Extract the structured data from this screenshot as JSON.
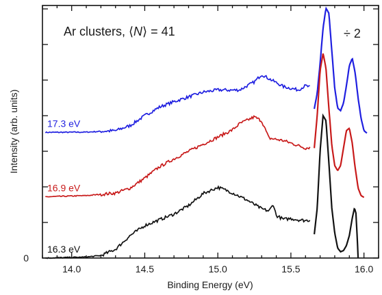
{
  "chart_data": {
    "type": "line",
    "title": "Ar clusters, ⟨N⟩ = 41",
    "title_prefix": "Ar clusters, ⟨",
    "title_var": "N",
    "title_suffix": "⟩ =  41",
    "xlabel": "Binding Energy (eV)",
    "ylabel": "Intensity (arb. units)",
    "xlim": [
      13.8,
      16.1
    ],
    "ylim": [
      0,
      1
    ],
    "x_ticks": [
      14.0,
      14.5,
      15.0,
      15.5,
      16.0
    ],
    "x_tick_labels": [
      "14.0",
      "14.5",
      "15.0",
      "15.5",
      "16.0"
    ],
    "y_tick_labels": [
      "0"
    ],
    "scale_note": "÷ 2",
    "grid": false,
    "series": [
      {
        "name": "17.3 eV",
        "color": "#1f1fe0",
        "x": [
          13.82,
          14.1,
          14.3,
          14.4,
          14.5,
          14.6,
          14.7,
          14.8,
          14.9,
          15.0,
          15.1,
          15.15,
          15.25,
          15.3,
          15.35,
          15.45,
          15.55,
          15.6,
          15.63
        ],
        "y": [
          0.503,
          0.504,
          0.51,
          0.53,
          0.57,
          0.604,
          0.626,
          0.645,
          0.664,
          0.673,
          0.672,
          0.673,
          0.705,
          0.735,
          0.718,
          0.686,
          0.673,
          0.69,
          0.684
        ],
        "peak_x": [
          15.66,
          15.68,
          15.7,
          15.72,
          15.74,
          15.76,
          15.78,
          15.8,
          15.82,
          15.84,
          15.86,
          15.88,
          15.9,
          15.92,
          15.94,
          15.96,
          15.98,
          16.0,
          16.02
        ],
        "peak_y": [
          0.597,
          0.66,
          0.78,
          0.92,
          1.0,
          0.98,
          0.83,
          0.68,
          0.6,
          0.59,
          0.62,
          0.69,
          0.77,
          0.8,
          0.74,
          0.64,
          0.56,
          0.51,
          0.5
        ]
      },
      {
        "name": "16.9 eV",
        "color": "#c81a1a",
        "x": [
          13.82,
          14.1,
          14.3,
          14.4,
          14.5,
          14.6,
          14.7,
          14.8,
          14.9,
          15.0,
          15.1,
          15.15,
          15.25,
          15.3,
          15.35,
          15.45,
          15.55,
          15.6,
          15.63
        ],
        "y": [
          0.245,
          0.25,
          0.26,
          0.28,
          0.32,
          0.365,
          0.397,
          0.427,
          0.456,
          0.484,
          0.513,
          0.538,
          0.565,
          0.549,
          0.48,
          0.47,
          0.45,
          0.44,
          0.443
        ],
        "peak_x": [
          15.66,
          15.68,
          15.7,
          15.72,
          15.74,
          15.76,
          15.78,
          15.8,
          15.82,
          15.84,
          15.86,
          15.88,
          15.9,
          15.92,
          15.94,
          15.96,
          15.98,
          16.0
        ],
        "peak_y": [
          0.44,
          0.57,
          0.75,
          0.82,
          0.76,
          0.6,
          0.45,
          0.37,
          0.35,
          0.37,
          0.44,
          0.51,
          0.52,
          0.46,
          0.36,
          0.28,
          0.25,
          0.243
        ]
      },
      {
        "name": "16.3 eV",
        "color": "#111111",
        "x": [
          13.82,
          14.1,
          14.2,
          14.3,
          14.4,
          14.5,
          14.6,
          14.7,
          14.8,
          14.9,
          15.0,
          15.05,
          15.1,
          15.2,
          15.3,
          15.35,
          15.38,
          15.4,
          15.45,
          15.5,
          15.55,
          15.6,
          15.63
        ],
        "y": [
          0.0,
          0.004,
          0.01,
          0.035,
          0.09,
          0.13,
          0.153,
          0.176,
          0.21,
          0.258,
          0.283,
          0.273,
          0.261,
          0.232,
          0.197,
          0.188,
          0.215,
          0.17,
          0.155,
          0.158,
          0.153,
          0.15,
          0.152
        ],
        "peak_x": [
          15.66,
          15.68,
          15.7,
          15.72,
          15.74,
          15.76,
          15.78,
          15.8,
          15.82,
          15.84,
          15.86,
          15.88,
          15.9,
          15.92,
          15.935,
          15.945,
          15.955,
          15.96
        ],
        "peak_y": [
          0.095,
          0.2,
          0.43,
          0.57,
          0.55,
          0.38,
          0.2,
          0.1,
          0.04,
          0.025,
          0.03,
          0.05,
          0.09,
          0.16,
          0.2,
          0.18,
          0.07,
          0.0
        ]
      }
    ]
  }
}
